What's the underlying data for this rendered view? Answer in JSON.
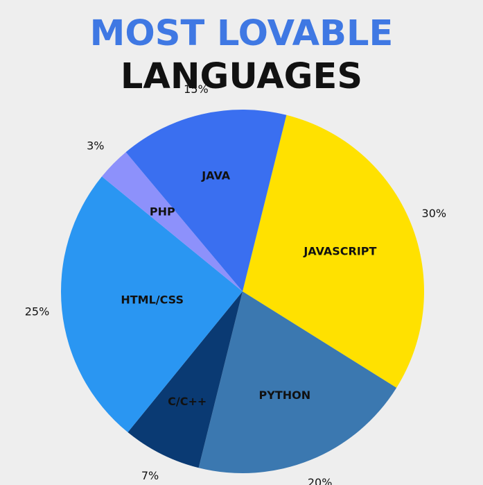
{
  "chart_data": {
    "type": "pie",
    "title_line1": "MOST LOVABLE",
    "title_line2": "LANGUAGES",
    "slices": [
      {
        "label": "JAVASCRIPT",
        "value": 30,
        "percent_label": "30%",
        "color": "#ffe100"
      },
      {
        "label": "PYTHON",
        "value": 20,
        "percent_label": "20%",
        "color": "#3b78b0"
      },
      {
        "label": "C/C++",
        "value": 7,
        "percent_label": "7%",
        "color": "#0a3a73"
      },
      {
        "label": "HTML/CSS",
        "value": 25,
        "percent_label": "25%",
        "color": "#2a96f2"
      },
      {
        "label": "PHP",
        "value": 3,
        "percent_label": "3%",
        "color": "#8d91fb"
      },
      {
        "label": "JAVA",
        "value": 15,
        "percent_label": "15%",
        "color": "#3a6ff0"
      }
    ]
  },
  "colors": {
    "background": "#eeeeee",
    "title_accent": "#3f78e3",
    "title_dark": "#111111"
  }
}
